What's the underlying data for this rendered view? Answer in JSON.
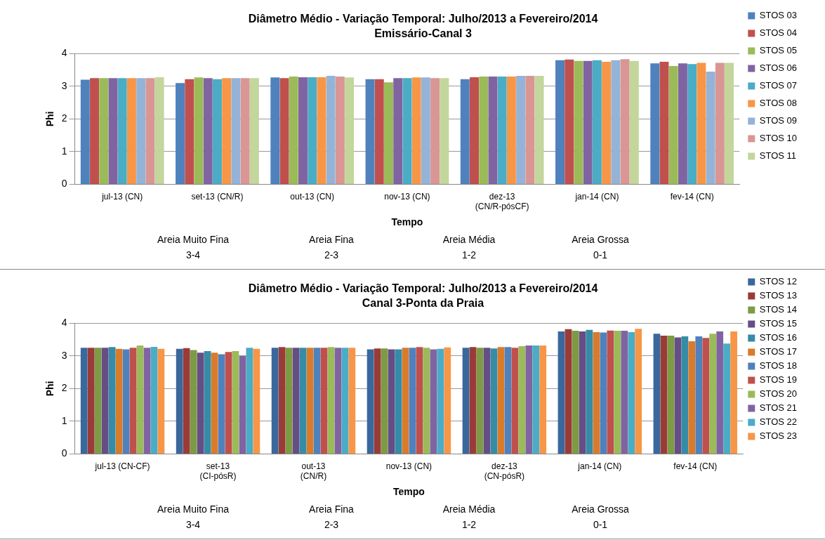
{
  "chart_data": [
    {
      "type": "bar",
      "title": "Diâmetro Médio - Variação Temporal: Julho/2013 a Fevereiro/2014",
      "subtitle": "Emissário-Canal 3",
      "xlabel": "Tempo",
      "ylabel": "Phi",
      "categories": [
        "jul-13 (CN)",
        "set-13 (CN/R)",
        "out-13 (CN)",
        "nov-13 (CN)",
        "dez-13\n(CN/R-pósCF)",
        "jan-14 (CN)",
        "fev-14 (CN)"
      ],
      "series": [
        {
          "name": "STOS 03",
          "color": "#4f81bd",
          "values": [
            3.2,
            3.1,
            3.27,
            3.22,
            3.22,
            3.8,
            3.7
          ]
        },
        {
          "name": "STOS 04",
          "color": "#c0504d",
          "values": [
            3.25,
            3.22,
            3.25,
            3.22,
            3.28,
            3.82,
            3.75
          ]
        },
        {
          "name": "STOS 05",
          "color": "#9bbb59",
          "values": [
            3.25,
            3.27,
            3.3,
            3.12,
            3.3,
            3.78,
            3.62
          ]
        },
        {
          "name": "STOS 06",
          "color": "#8064a2",
          "values": [
            3.25,
            3.25,
            3.28,
            3.25,
            3.3,
            3.78,
            3.7
          ]
        },
        {
          "name": "STOS 07",
          "color": "#4bacc6",
          "values": [
            3.25,
            3.22,
            3.28,
            3.25,
            3.3,
            3.8,
            3.68
          ]
        },
        {
          "name": "STOS 08",
          "color": "#f79646",
          "values": [
            3.25,
            3.25,
            3.28,
            3.27,
            3.3,
            3.75,
            3.72
          ]
        },
        {
          "name": "STOS 09",
          "color": "#95b3d7",
          "values": [
            3.25,
            3.25,
            3.32,
            3.27,
            3.32,
            3.8,
            3.45
          ]
        },
        {
          "name": "STOS 10",
          "color": "#d99694",
          "values": [
            3.25,
            3.25,
            3.3,
            3.25,
            3.32,
            3.83,
            3.72
          ]
        },
        {
          "name": "STOS 11",
          "color": "#c3d69b",
          "values": [
            3.28,
            3.25,
            3.27,
            3.25,
            3.32,
            3.78,
            3.72
          ]
        }
      ],
      "ylim": [
        0,
        4
      ],
      "yticks": [
        0,
        1,
        2,
        3,
        4
      ],
      "grid": "y",
      "legend": "right",
      "annotations": [
        "Areia Muito Fina",
        "3-4",
        "Areia Fina",
        "2-3",
        "Areia Média",
        "1-2",
        "Areia Grossa",
        "0-1"
      ]
    },
    {
      "type": "bar",
      "title": "Diâmetro Médio - Variação Temporal: Julho/2013 a Fevereiro/2014",
      "subtitle": "Canal 3-Ponta da Praia",
      "xlabel": "Tempo",
      "ylabel": "Phi",
      "categories": [
        "jul-13 (CN-CF)",
        "set-13\n(CI-pósR)",
        "out-13\n(CN/R)",
        "nov-13 (CN)",
        "dez-13\n(CN-pósR)",
        "jan-14 (CN)",
        "fev-14 (CN)"
      ],
      "series": [
        {
          "name": "STOS 12",
          "color": "#3a679c",
          "values": [
            3.25,
            3.22,
            3.25,
            3.2,
            3.25,
            3.75,
            3.68
          ]
        },
        {
          "name": "STOS 13",
          "color": "#9a3b38",
          "values": [
            3.25,
            3.24,
            3.27,
            3.23,
            3.27,
            3.82,
            3.62
          ]
        },
        {
          "name": "STOS 14",
          "color": "#7d9a45",
          "values": [
            3.25,
            3.18,
            3.25,
            3.23,
            3.25,
            3.77,
            3.62
          ]
        },
        {
          "name": "STOS 15",
          "color": "#644e85",
          "values": [
            3.25,
            3.1,
            3.25,
            3.2,
            3.25,
            3.75,
            3.57
          ]
        },
        {
          "name": "STOS 16",
          "color": "#358ca6",
          "values": [
            3.27,
            3.15,
            3.25,
            3.2,
            3.23,
            3.8,
            3.6
          ]
        },
        {
          "name": "STOS 17",
          "color": "#d97b2b",
          "values": [
            3.22,
            3.1,
            3.25,
            3.25,
            3.27,
            3.73,
            3.45
          ]
        },
        {
          "name": "STOS 18",
          "color": "#4f81bd",
          "values": [
            3.2,
            3.05,
            3.25,
            3.25,
            3.27,
            3.72,
            3.6
          ]
        },
        {
          "name": "STOS 19",
          "color": "#c0504d",
          "values": [
            3.25,
            3.12,
            3.25,
            3.27,
            3.25,
            3.78,
            3.55
          ]
        },
        {
          "name": "STOS 20",
          "color": "#9bbb59",
          "values": [
            3.32,
            3.15,
            3.27,
            3.25,
            3.3,
            3.77,
            3.68
          ]
        },
        {
          "name": "STOS 21",
          "color": "#8064a2",
          "values": [
            3.25,
            3.0,
            3.25,
            3.2,
            3.32,
            3.77,
            3.75
          ]
        },
        {
          "name": "STOS 22",
          "color": "#4bacc6",
          "values": [
            3.28,
            3.25,
            3.25,
            3.22,
            3.32,
            3.73,
            3.38
          ]
        },
        {
          "name": "STOS 23",
          "color": "#f79646",
          "values": [
            3.22,
            3.22,
            3.25,
            3.26,
            3.32,
            3.83,
            3.75
          ]
        }
      ],
      "ylim": [
        0,
        4
      ],
      "yticks": [
        0,
        1,
        2,
        3,
        4
      ],
      "grid": "y",
      "legend": "right",
      "annotations": [
        "Areia Muito Fina",
        "3-4",
        "Areia Fina",
        "2-3",
        "Areia Média",
        "1-2",
        "Areia Grossa",
        "0-1"
      ]
    }
  ]
}
